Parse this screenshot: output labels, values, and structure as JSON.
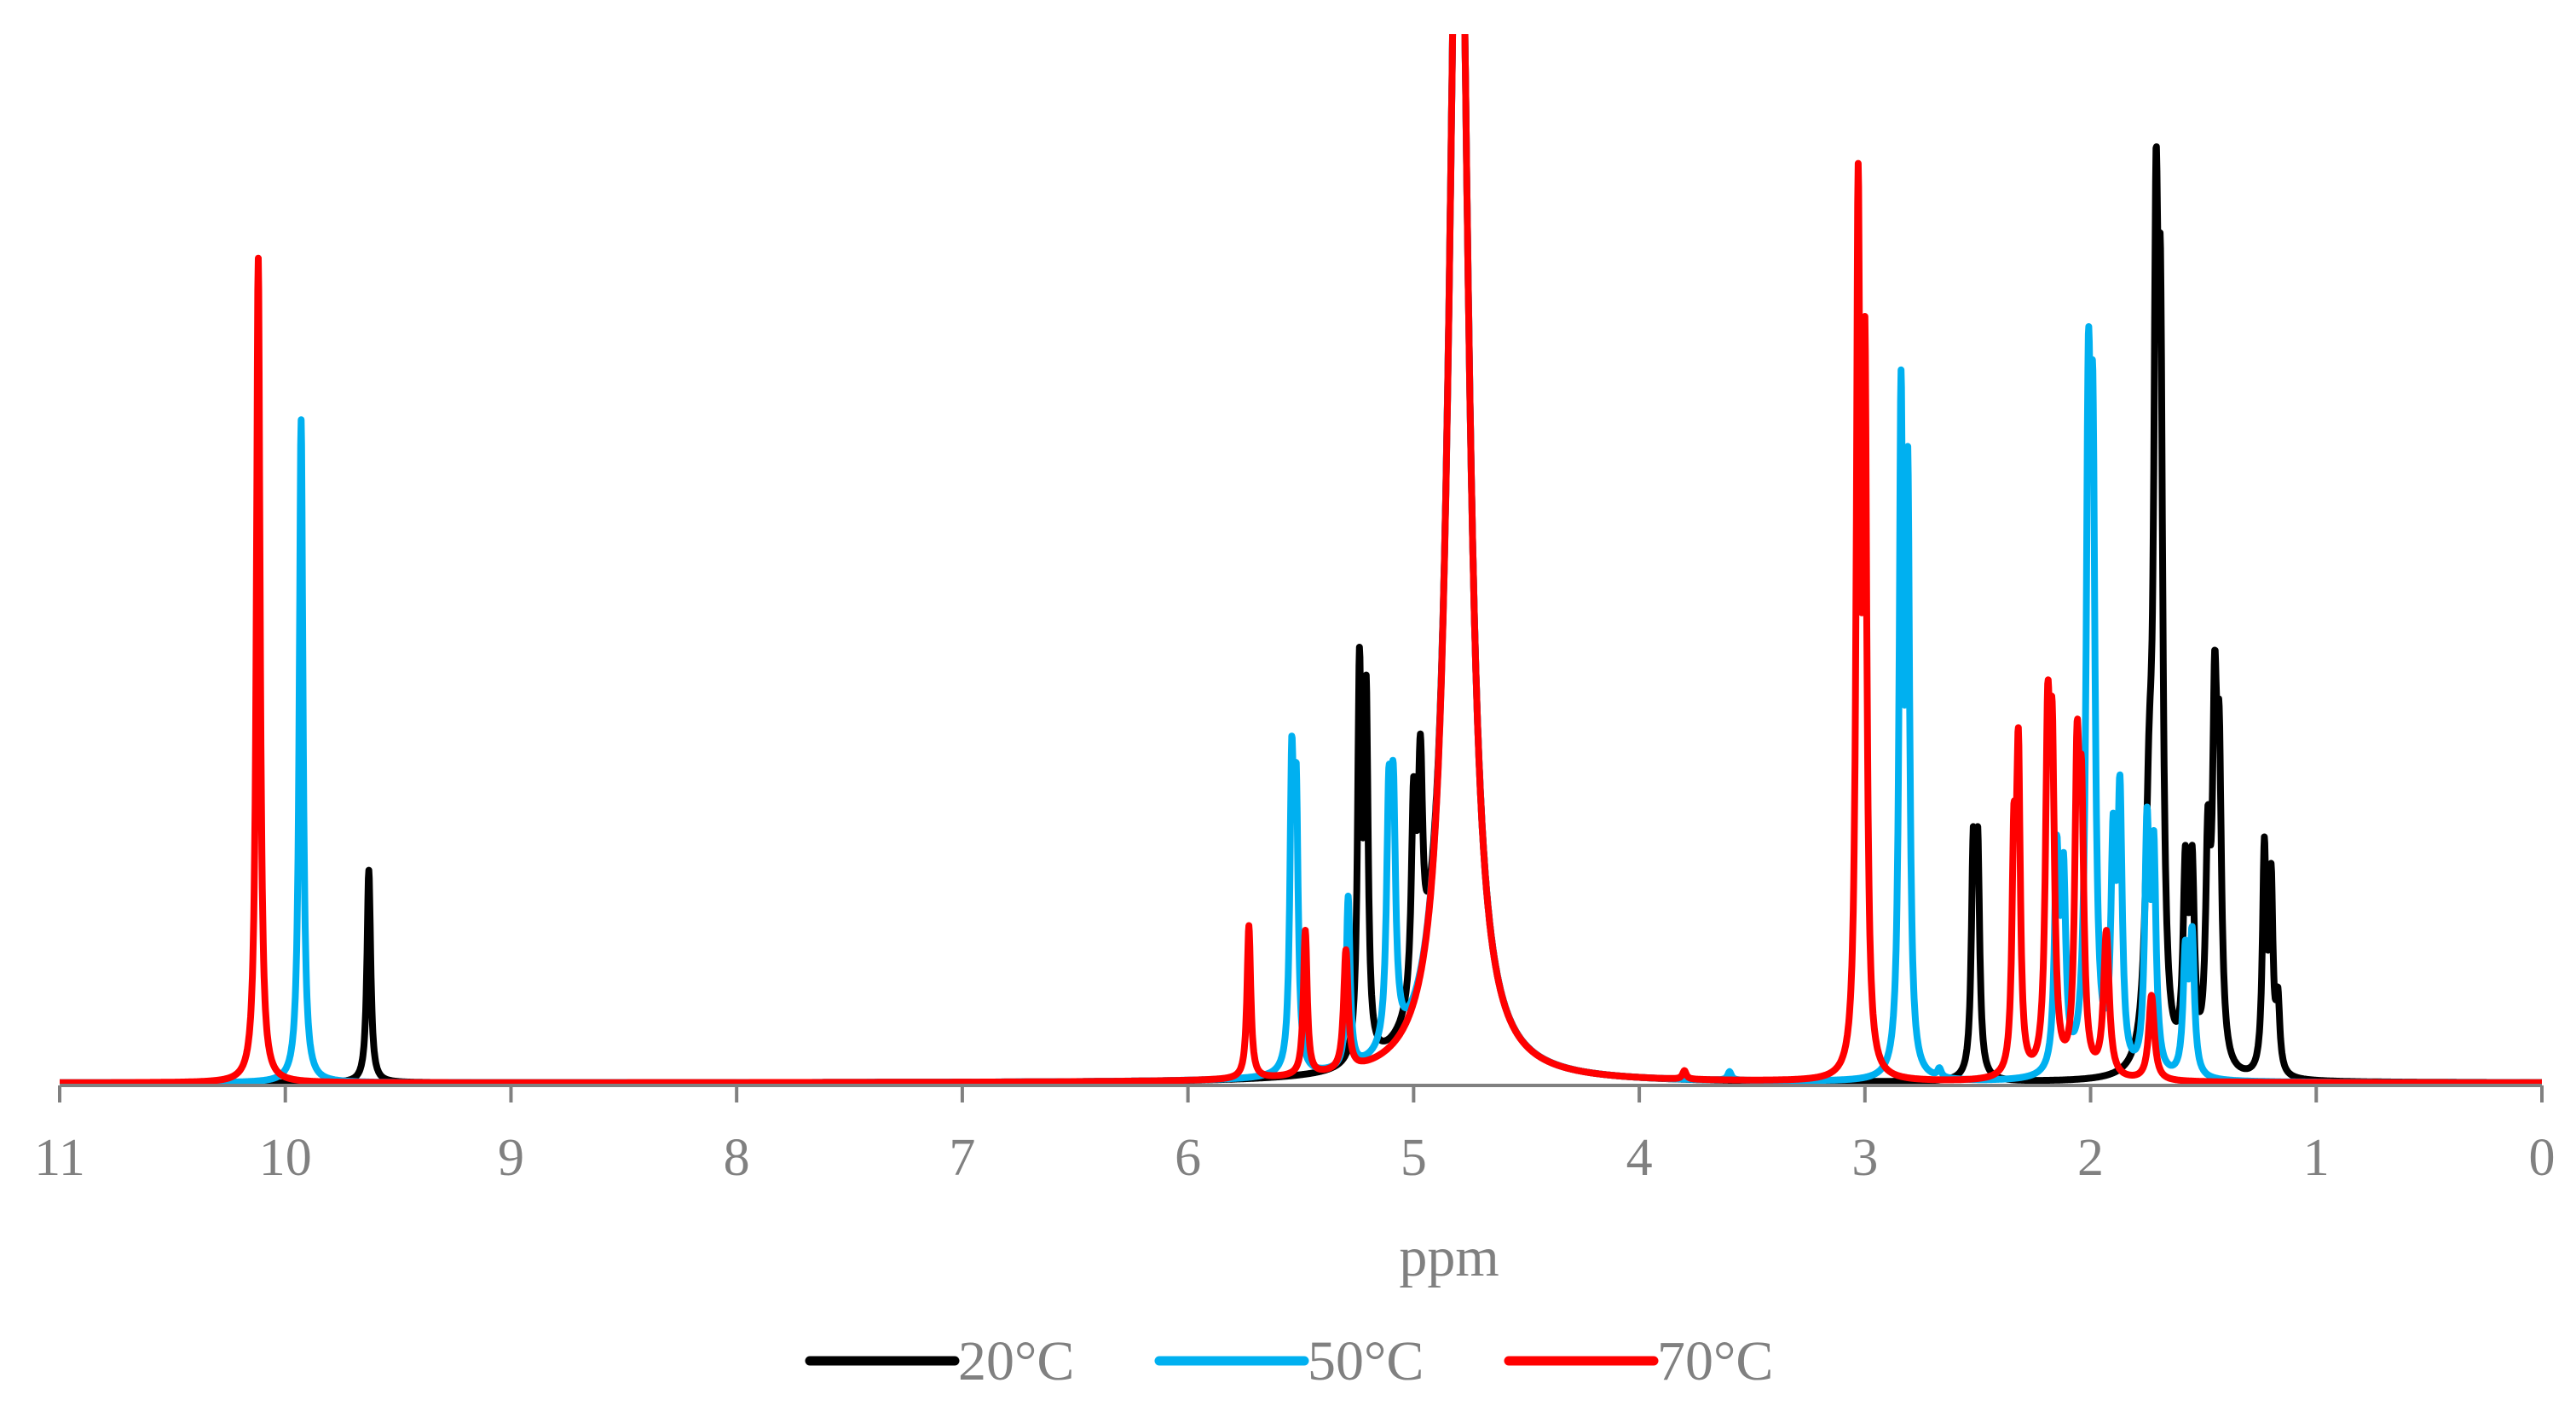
{
  "chart_data": {
    "type": "line",
    "title": "",
    "xlabel": "ppm",
    "ylabel": "",
    "xlim": [
      11,
      0
    ],
    "x_reversed": true,
    "ylim": [
      0,
      1.0
    ],
    "y_axis_visible": false,
    "grid": false,
    "legend_position": "bottom-center",
    "x_ticks": [
      "11",
      "10",
      "9",
      "8",
      "7",
      "6",
      "5",
      "4",
      "3",
      "2",
      "1",
      "0"
    ],
    "series": [
      {
        "name": "20°C",
        "color": "#000000",
        "peaks": [
          {
            "x": 9.63,
            "h": 0.25,
            "w": 0.01
          },
          {
            "x": 5.24,
            "h": 0.45,
            "w": 0.01
          },
          {
            "x": 5.21,
            "h": 0.41,
            "w": 0.01
          },
          {
            "x": 5.0,
            "h": 0.23,
            "w": 0.012
          },
          {
            "x": 4.97,
            "h": 0.25,
            "w": 0.012
          },
          {
            "x": 4.8,
            "h": 1.6,
            "w": 0.05
          },
          {
            "x": 2.52,
            "h": 0.25,
            "w": 0.01
          },
          {
            "x": 2.5,
            "h": 0.25,
            "w": 0.01
          },
          {
            "x": 1.74,
            "h": 0.27,
            "w": 0.02
          },
          {
            "x": 1.71,
            "h": 0.82,
            "w": 0.012
          },
          {
            "x": 1.69,
            "h": 0.72,
            "w": 0.012
          },
          {
            "x": 1.58,
            "h": 0.22,
            "w": 0.012
          },
          {
            "x": 1.55,
            "h": 0.22,
            "w": 0.012
          },
          {
            "x": 1.48,
            "h": 0.24,
            "w": 0.012
          },
          {
            "x": 1.45,
            "h": 0.38,
            "w": 0.012
          },
          {
            "x": 1.43,
            "h": 0.32,
            "w": 0.012
          },
          {
            "x": 1.23,
            "h": 0.26,
            "w": 0.01
          },
          {
            "x": 1.2,
            "h": 0.22,
            "w": 0.01
          },
          {
            "x": 1.17,
            "h": 0.08,
            "w": 0.01
          }
        ]
      },
      {
        "name": "50°C",
        "color": "#00B0F0",
        "peaks": [
          {
            "x": 9.93,
            "h": 0.78,
            "w": 0.01
          },
          {
            "x": 5.54,
            "h": 0.34,
            "w": 0.01
          },
          {
            "x": 5.52,
            "h": 0.3,
            "w": 0.01
          },
          {
            "x": 5.29,
            "h": 0.2,
            "w": 0.01
          },
          {
            "x": 5.11,
            "h": 0.26,
            "w": 0.012
          },
          {
            "x": 5.09,
            "h": 0.26,
            "w": 0.012
          },
          {
            "x": 4.8,
            "h": 1.6,
            "w": 0.05
          },
          {
            "x": 3.6,
            "h": 0.01,
            "w": 0.01
          },
          {
            "x": 2.84,
            "h": 0.77,
            "w": 0.01
          },
          {
            "x": 2.81,
            "h": 0.67,
            "w": 0.01
          },
          {
            "x": 2.67,
            "h": 0.01,
            "w": 0.01
          },
          {
            "x": 2.15,
            "h": 0.25,
            "w": 0.012
          },
          {
            "x": 2.12,
            "h": 0.22,
            "w": 0.012
          },
          {
            "x": 2.01,
            "h": 0.7,
            "w": 0.012
          },
          {
            "x": 1.99,
            "h": 0.64,
            "w": 0.012
          },
          {
            "x": 1.9,
            "h": 0.25,
            "w": 0.012
          },
          {
            "x": 1.87,
            "h": 0.31,
            "w": 0.012
          },
          {
            "x": 1.75,
            "h": 0.28,
            "w": 0.012
          },
          {
            "x": 1.72,
            "h": 0.25,
            "w": 0.012
          },
          {
            "x": 1.58,
            "h": 0.14,
            "w": 0.012
          },
          {
            "x": 1.55,
            "h": 0.16,
            "w": 0.012
          }
        ]
      },
      {
        "name": "70°C",
        "color": "#FF0000",
        "peaks": [
          {
            "x": 10.12,
            "h": 0.97,
            "w": 0.01
          },
          {
            "x": 5.73,
            "h": 0.18,
            "w": 0.01
          },
          {
            "x": 5.48,
            "h": 0.17,
            "w": 0.01
          },
          {
            "x": 5.3,
            "h": 0.14,
            "w": 0.012
          },
          {
            "x": 4.8,
            "h": 1.6,
            "w": 0.05
          },
          {
            "x": 3.8,
            "h": 0.01,
            "w": 0.01
          },
          {
            "x": 3.03,
            "h": 1.0,
            "w": 0.01
          },
          {
            "x": 3.0,
            "h": 0.8,
            "w": 0.01
          },
          {
            "x": 2.34,
            "h": 0.25,
            "w": 0.01
          },
          {
            "x": 2.32,
            "h": 0.36,
            "w": 0.01
          },
          {
            "x": 2.19,
            "h": 0.37,
            "w": 0.012
          },
          {
            "x": 2.17,
            "h": 0.34,
            "w": 0.012
          },
          {
            "x": 2.06,
            "h": 0.34,
            "w": 0.012
          },
          {
            "x": 2.04,
            "h": 0.28,
            "w": 0.012
          },
          {
            "x": 1.93,
            "h": 0.17,
            "w": 0.015
          },
          {
            "x": 1.73,
            "h": 0.1,
            "w": 0.015
          }
        ]
      }
    ]
  }
}
